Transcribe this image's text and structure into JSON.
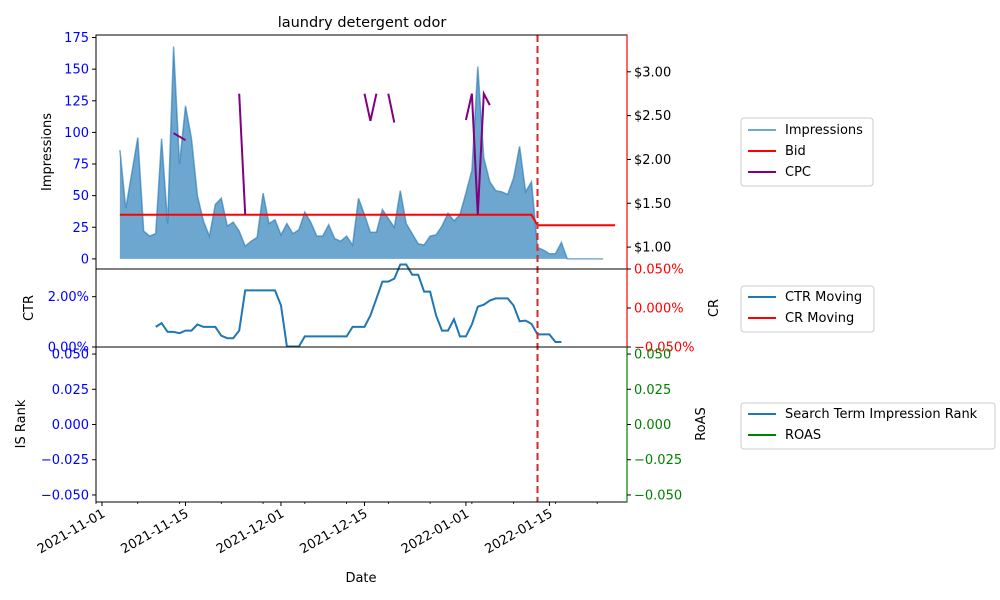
{
  "chart_data": {
    "type": "line",
    "title": "laundry detergent odor",
    "xlabel": "Date",
    "x_ticks": [
      "2021-11-01",
      "2021-11-15",
      "2021-12-01",
      "2021-12-15",
      "2022-01-01",
      "2022-01-15"
    ],
    "x_range": [
      "2021-10-31",
      "2022-01-28"
    ],
    "vline_date": "2022-01-13",
    "colors": {
      "impressions": "#1f77b4",
      "bid": "#ff0000",
      "cpc": "#800080",
      "ctr": "#1f77b4",
      "cr": "#ff0000",
      "rank": "#1f77b4",
      "roas": "#008000",
      "vline": "#d62728",
      "left_tick": "#0000ff",
      "right_tick_top": "#ff0000",
      "right_tick_bottom": "#008000"
    },
    "panels": {
      "top": {
        "ylabel": "Impressions",
        "ylim": [
          -8,
          177
        ],
        "yticks": [
          0,
          25,
          50,
          75,
          100,
          125,
          150,
          175
        ],
        "y2lim": [
          0.75,
          3.42
        ],
        "y2ticks": [
          1.0,
          1.5,
          2.0,
          2.5,
          3.0
        ],
        "y2tick_labels": [
          "$1.00",
          "$1.50",
          "$2.00",
          "$2.50",
          "$3.00"
        ],
        "legend": [
          "Impressions",
          "Bid",
          "CPC"
        ],
        "series": [
          {
            "name": "Impressions",
            "kind": "area",
            "x": [
              "2021-11-04",
              "2021-11-05",
              "2021-11-06",
              "2021-11-07",
              "2021-11-08",
              "2021-11-09",
              "2021-11-10",
              "2021-11-11",
              "2021-11-12",
              "2021-11-13",
              "2021-11-14",
              "2021-11-15",
              "2021-11-16",
              "2021-11-17",
              "2021-11-18",
              "2021-11-19",
              "2021-11-20",
              "2021-11-21",
              "2021-11-22",
              "2021-11-23",
              "2021-11-24",
              "2021-11-25",
              "2021-11-26",
              "2021-11-27",
              "2021-11-28",
              "2021-11-29",
              "2021-11-30",
              "2021-12-01",
              "2021-12-02",
              "2021-12-03",
              "2021-12-04",
              "2021-12-05",
              "2021-12-06",
              "2021-12-07",
              "2021-12-08",
              "2021-12-09",
              "2021-12-10",
              "2021-12-11",
              "2021-12-12",
              "2021-12-13",
              "2021-12-14",
              "2021-12-15",
              "2021-12-16",
              "2021-12-17",
              "2021-12-18",
              "2021-12-19",
              "2021-12-20",
              "2021-12-21",
              "2021-12-22",
              "2021-12-23",
              "2021-12-24",
              "2021-12-25",
              "2021-12-26",
              "2021-12-27",
              "2021-12-28",
              "2021-12-29",
              "2021-12-30",
              "2021-12-31",
              "2022-01-01",
              "2022-01-02",
              "2022-01-03",
              "2022-01-04",
              "2022-01-05",
              "2022-01-06",
              "2022-01-07",
              "2022-01-08",
              "2022-01-09",
              "2022-01-10",
              "2022-01-11",
              "2022-01-12",
              "2022-01-13",
              "2022-01-14",
              "2022-01-15",
              "2022-01-16",
              "2022-01-17",
              "2022-01-18",
              "2022-01-19",
              "2022-01-20",
              "2022-01-21",
              "2022-01-22",
              "2022-01-23",
              "2022-01-24"
            ],
            "y": [
              86,
              40,
              68,
              96,
              22,
              18,
              20,
              95,
              28,
              168,
              75,
              121,
              95,
              50,
              30,
              18,
              43,
              48,
              26,
              29,
              22,
              10,
              14,
              17,
              52,
              28,
              31,
              19,
              28,
              20,
              23,
              37,
              29,
              18,
              18,
              27,
              16,
              14,
              18,
              11,
              48,
              35,
              21,
              21,
              39,
              32,
              25,
              54,
              28,
              20,
              12,
              11,
              18,
              19,
              26,
              36,
              30,
              35,
              52,
              70,
              152,
              80,
              61,
              54,
              53,
              51,
              64,
              89,
              53,
              61,
              9,
              7,
              4,
              4,
              13,
              0,
              0,
              0,
              0,
              0,
              0,
              0
            ]
          },
          {
            "name": "Bid",
            "kind": "line",
            "x": [
              "2021-11-04",
              "2022-01-12",
              "2022-01-13",
              "2022-01-26"
            ],
            "y": [
              1.37,
              1.37,
              1.25,
              1.25
            ]
          },
          {
            "name": "CPC",
            "kind": "segments",
            "segments": [
              {
                "x": [
                  "2021-11-13",
                  "2021-11-15"
                ],
                "y": [
                  2.3,
                  2.22
                ]
              },
              {
                "x": [
                  "2021-11-24",
                  "2021-11-25"
                ],
                "y": [
                  2.75,
                  1.37
                ]
              },
              {
                "x": [
                  "2021-12-15",
                  "2021-12-16",
                  "2021-12-17"
                ],
                "y": [
                  2.75,
                  2.44,
                  2.75
                ]
              },
              {
                "x": [
                  "2021-12-19",
                  "2021-12-20"
                ],
                "y": [
                  2.75,
                  2.42
                ]
              },
              {
                "x": [
                  "2022-01-01",
                  "2022-01-02",
                  "2022-01-03",
                  "2022-01-04",
                  "2022-01-05"
                ],
                "y": [
                  2.45,
                  2.75,
                  1.37,
                  2.75,
                  2.62
                ]
              }
            ]
          }
        ]
      },
      "middle": {
        "ylabel": "CTR",
        "y2label": "CR",
        "ylim": [
          0,
          0.031
        ],
        "yticks": [
          0,
          0.02
        ],
        "ytick_labels": [
          "0.00%",
          "2.00%"
        ],
        "y2lim": [
          -0.05,
          0.05
        ],
        "y2ticks": [
          -0.05,
          0.0,
          0.05
        ],
        "y2tick_labels": [
          "−0.050%",
          "0.000%",
          "0.050%"
        ],
        "legend": [
          "CTR Moving",
          "CR Moving"
        ],
        "series": [
          {
            "name": "CTR Moving",
            "kind": "line",
            "x": [
              "2021-11-10",
              "2021-11-11",
              "2021-11-12",
              "2021-11-13",
              "2021-11-14",
              "2021-11-15",
              "2021-11-16",
              "2021-11-17",
              "2021-11-18",
              "2021-11-19",
              "2021-11-20",
              "2021-11-21",
              "2021-11-22",
              "2021-11-23",
              "2021-11-24",
              "2021-11-25",
              "2021-11-26",
              "2021-11-27",
              "2021-11-28",
              "2021-11-29",
              "2021-11-30",
              "2021-12-01",
              "2021-12-02",
              "2021-12-03",
              "2021-12-04",
              "2021-12-05",
              "2021-12-06",
              "2021-12-07",
              "2021-12-08",
              "2021-12-09",
              "2021-12-10",
              "2021-12-11",
              "2021-12-12",
              "2021-12-13",
              "2021-12-14",
              "2021-12-15",
              "2021-12-16",
              "2021-12-17",
              "2021-12-18",
              "2021-12-19",
              "2021-12-20",
              "2021-12-21",
              "2021-12-22",
              "2021-12-23",
              "2021-12-24",
              "2021-12-25",
              "2021-12-26",
              "2021-12-27",
              "2021-12-28",
              "2021-12-29",
              "2021-12-30",
              "2021-12-31",
              "2022-01-01",
              "2022-01-02",
              "2022-01-03",
              "2022-01-04",
              "2022-01-05",
              "2022-01-06",
              "2022-01-07",
              "2022-01-08",
              "2022-01-09",
              "2022-01-10",
              "2022-01-11",
              "2022-01-12",
              "2022-01-13",
              "2022-01-14",
              "2022-01-15",
              "2022-01-16",
              "2022-01-17"
            ],
            "y": [
              0.008,
              0.0095,
              0.006,
              0.006,
              0.0055,
              0.0065,
              0.0065,
              0.009,
              0.008,
              0.008,
              0.008,
              0.0045,
              0.0035,
              0.0035,
              0.0065,
              0.0225,
              0.0225,
              0.0225,
              0.0225,
              0.0225,
              0.0225,
              0.0165,
              0.0002,
              0.0002,
              0.0002,
              0.0042,
              0.0042,
              0.0042,
              0.0042,
              0.0042,
              0.0042,
              0.0042,
              0.0042,
              0.008,
              0.008,
              0.008,
              0.0125,
              0.0192,
              0.026,
              0.026,
              0.0272,
              0.0328,
              0.0328,
              0.0287,
              0.0287,
              0.022,
              0.022,
              0.0125,
              0.0065,
              0.0065,
              0.011,
              0.0042,
              0.0042,
              0.009,
              0.016,
              0.0168,
              0.0185,
              0.0193,
              0.0193,
              0.0193,
              0.0165,
              0.0102,
              0.0105,
              0.0092,
              0.005,
              0.005,
              0.005,
              0.002,
              0.002
            ]
          }
        ]
      },
      "bottom": {
        "ylabel": "IS Rank",
        "y2label": "RoAS",
        "ylim": [
          -0.055,
          0.055
        ],
        "yticks": [
          -0.05,
          -0.025,
          0.0,
          0.025,
          0.05
        ],
        "ytick_labels": [
          "−0.050",
          "−0.025",
          "0.000",
          "0.025",
          "0.050"
        ],
        "y2ticks": [
          -0.05,
          -0.025,
          0.0,
          0.025,
          0.05
        ],
        "y2tick_labels": [
          "−0.050",
          "−0.025",
          "0.000",
          "0.025",
          "0.050"
        ],
        "legend": [
          "Search Term Impression Rank",
          "ROAS"
        ],
        "series": []
      }
    }
  }
}
